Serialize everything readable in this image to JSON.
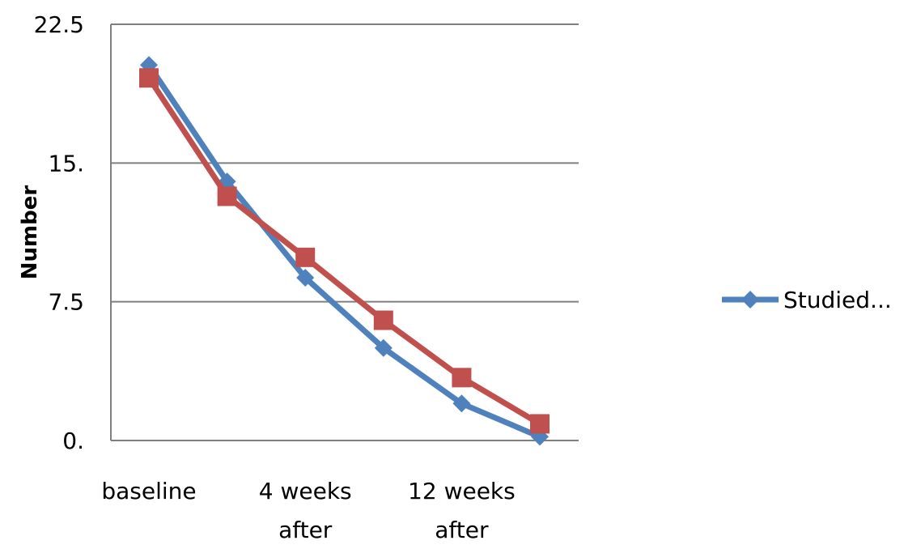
{
  "chart_data": {
    "type": "line",
    "ylabel": "Number",
    "ylim": [
      0,
      22.5
    ],
    "yticks": [
      {
        "value": 0,
        "label": "0."
      },
      {
        "value": 7.5,
        "label": "7.5"
      },
      {
        "value": 15,
        "label": "15."
      },
      {
        "value": 22.5,
        "label": "22.5"
      }
    ],
    "x_count": 6,
    "category_labels": [
      {
        "index": 0,
        "lines": [
          "baseline"
        ]
      },
      {
        "index": 2,
        "lines": [
          "4 weeks",
          "after"
        ]
      },
      {
        "index": 4,
        "lines": [
          "12 weeks",
          "after"
        ]
      }
    ],
    "grid": true,
    "legend_position": "right",
    "series": [
      {
        "name": "Studied...",
        "color": "#4f81bd",
        "marker": "diamond",
        "values": [
          20.3,
          14,
          8.8,
          5.0,
          2.0,
          0.2
        ]
      },
      {
        "color": "#c0504d",
        "marker": "square",
        "values": [
          19.6,
          13.2,
          9.9,
          6.5,
          3.4,
          0.9
        ]
      }
    ]
  }
}
